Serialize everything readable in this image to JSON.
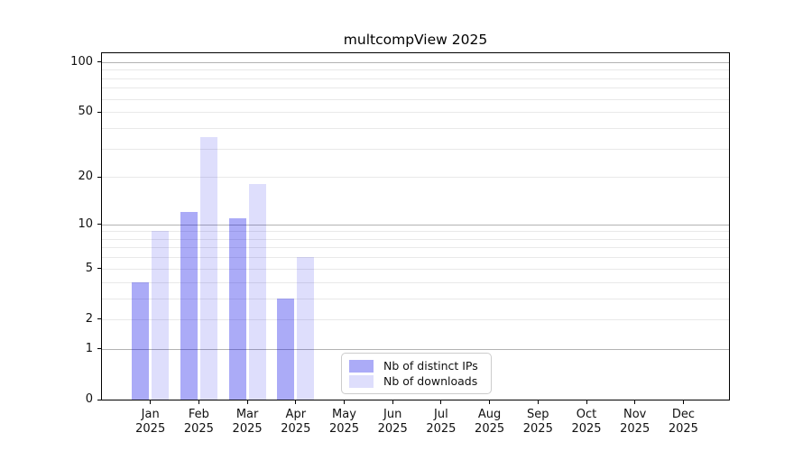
{
  "title": "multcompView 2025",
  "chart_data": {
    "type": "bar",
    "title": "multcompView 2025",
    "x_year_label": "2025",
    "categories": [
      "Jan",
      "Feb",
      "Mar",
      "Apr",
      "May",
      "Jun",
      "Jul",
      "Aug",
      "Sep",
      "Oct",
      "Nov",
      "Dec"
    ],
    "series": [
      {
        "name": "Nb of distinct IPs",
        "color": "rgba(0,0,230,0.33)",
        "values": [
          4,
          12,
          11,
          3,
          null,
          null,
          null,
          null,
          null,
          null,
          null,
          null
        ]
      },
      {
        "name": "Nb of downloads",
        "color": "rgba(0,0,230,0.13)",
        "values": [
          9,
          35,
          18,
          6,
          null,
          null,
          null,
          null,
          null,
          null,
          null,
          null
        ]
      }
    ],
    "y_axis": {
      "scale": "log10(1+x)",
      "ylim": [
        0,
        113
      ],
      "tick_labels": [
        0,
        1,
        2,
        5,
        10,
        20,
        50,
        100
      ],
      "gridlines_major": [
        1,
        10,
        100
      ],
      "gridlines_minor": [
        2,
        3,
        4,
        5,
        6,
        7,
        8,
        9,
        20,
        30,
        40,
        50,
        60,
        70,
        80,
        90
      ]
    },
    "legend_position": "lower center",
    "grid": true
  },
  "colors": {
    "grid_minor": "#e9e9e9",
    "grid_major": "#b3b3b3",
    "spine": "#000000",
    "text": "#111111",
    "legend_border": "#cccccc"
  }
}
